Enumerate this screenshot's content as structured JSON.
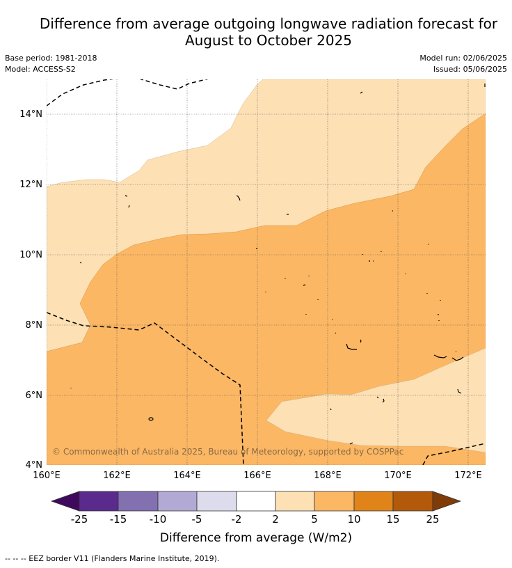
{
  "title_line1": "Difference from average outgoing longwave radiation forecast for",
  "title_line2": "August to October 2025",
  "base_period": "Base period: 1981-2018",
  "model": "Model: ACCESS-S2",
  "model_run": "Model run: 02/06/2025",
  "issued": "Issued: 05/06/2025",
  "copyright": "© Commonwealth of Australia 2025, Bureau of Meteorology, supported by COSPPac",
  "footer_note": "-- -- -- EEZ border V11 (Flanders Marine Institute, 2019).",
  "map": {
    "lat_ticks": [
      "14°N",
      "12°N",
      "10°N",
      "8°N",
      "6°N",
      "4°N"
    ],
    "lon_ticks": [
      "160°E",
      "162°E",
      "164°E",
      "166°E",
      "168°E",
      "170°E",
      "172°E"
    ]
  },
  "colorbar": {
    "label": "Difference from average (W/m2)",
    "ticks": [
      "-25",
      "-15",
      "-10",
      "-5",
      "-2",
      "2",
      "5",
      "10",
      "15",
      "25"
    ],
    "colors": [
      "#3f0a5e",
      "#5a2a8c",
      "#8270b0",
      "#b2a9d4",
      "#dcdcec",
      "#ffffff",
      "#fde0b4",
      "#fbb764",
      "#e0841a",
      "#b25a0a",
      "#7f3b08"
    ]
  }
}
